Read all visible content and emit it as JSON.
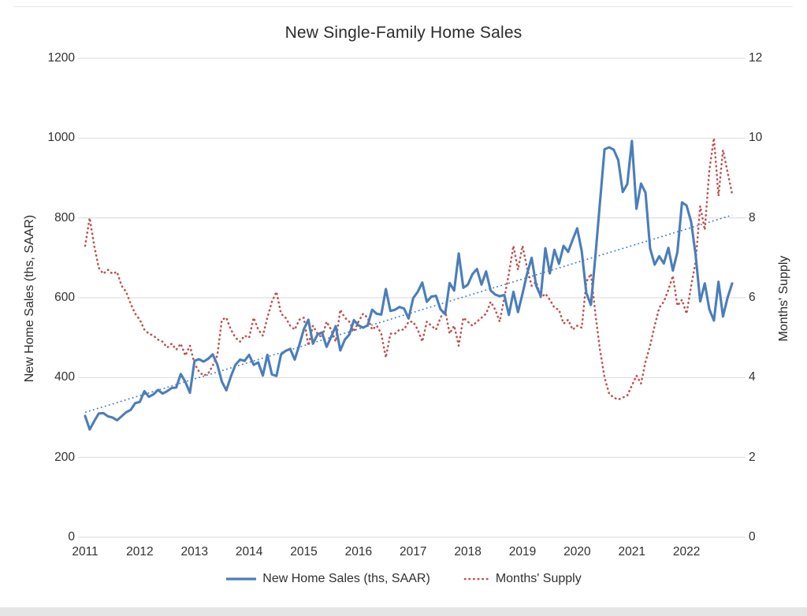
{
  "chart": {
    "title": "New Single-Family Home Sales",
    "left_axis_title": "New Home Sales (ths, SAAR)",
    "right_axis_title": "Months' Supply",
    "legend": {
      "sales_label": "New Home Sales (ths, SAAR)",
      "supply_label": "Months' Supply"
    },
    "colors": {
      "sales_line": "#4a7ebb",
      "supply_line": "#c0504d",
      "trend_line": "#4a7ebb",
      "gridline": "#d9d9d9",
      "text": "#303030"
    }
  },
  "chart_data": {
    "type": "line",
    "title": "New Single-Family Home Sales",
    "frequency": "monthly",
    "x_start": "2011-01",
    "x_end": "2022-11",
    "x_tick_labels": [
      "2011",
      "2012",
      "2013",
      "2014",
      "2015",
      "2016",
      "2017",
      "2018",
      "2019",
      "2020",
      "2021",
      "2022"
    ],
    "left_axis": {
      "label": "New Home Sales (ths, SAAR)",
      "ylim": [
        0,
        1200
      ],
      "tick_step": 200,
      "tick_labels": [
        "0",
        "200",
        "400",
        "600",
        "800",
        "1000",
        "1200"
      ]
    },
    "right_axis": {
      "label": "Months' Supply",
      "ylim": [
        0,
        12
      ],
      "tick_step": 2,
      "tick_labels": [
        "0",
        "2",
        "4",
        "6",
        "8",
        "10",
        "12"
      ]
    },
    "grid": "horizontal",
    "legend_position": "bottom",
    "series": [
      {
        "name": "New Home Sales (ths, SAAR)",
        "axis": "left",
        "style": "solid",
        "color": "#4a7ebb",
        "values": [
          304,
          270,
          291,
          310,
          311,
          303,
          300,
          293,
          303,
          313,
          319,
          336,
          339,
          366,
          352,
          358,
          369,
          360,
          366,
          374,
          375,
          409,
          389,
          362,
          442,
          446,
          440,
          447,
          458,
          433,
          390,
          368,
          403,
          432,
          445,
          442,
          457,
          432,
          438,
          405,
          457,
          408,
          404,
          458,
          467,
          472,
          445,
          481,
          521,
          545,
          485,
          508,
          513,
          477,
          502,
          529,
          468,
          495,
          508,
          544,
          531,
          525,
          531,
          570,
          560,
          558,
          622,
          567,
          570,
          577,
          573,
          548,
          599,
          615,
          638,
          590,
          603,
          605,
          571,
          559,
          637,
          618,
          711,
          625,
          633,
          659,
          672,
          633,
          666,
          618,
          608,
          604,
          607,
          557,
          615,
          564,
          610,
          660,
          700,
          630,
          604,
          724,
          661,
          720,
          685,
          730,
          715,
          745,
          774,
          716,
          612,
          582,
          704,
          839,
          972,
          977,
          971,
          945,
          865,
          885,
          993,
          823,
          886,
          863,
          724,
          683,
          704,
          686,
          725,
          668,
          715,
          839,
          831,
          790,
          707,
          591,
          636,
          571,
          543,
          640,
          553,
          600,
          636
        ]
      },
      {
        "name": "Months' Supply",
        "axis": "right",
        "style": "dotted",
        "color": "#c0504d",
        "values": [
          7.3,
          8.0,
          7.3,
          6.75,
          6.6,
          6.7,
          6.6,
          6.65,
          6.3,
          6.15,
          5.85,
          5.6,
          5.45,
          5.2,
          5.1,
          5.05,
          4.95,
          4.9,
          4.75,
          4.85,
          4.7,
          4.85,
          4.55,
          4.8,
          4.35,
          4.15,
          4.05,
          4.1,
          4.3,
          4.55,
          5.45,
          5.5,
          5.2,
          5.0,
          4.9,
          5.05,
          5.0,
          5.5,
          5.2,
          5.05,
          5.5,
          5.9,
          6.15,
          5.6,
          5.5,
          5.3,
          5.2,
          5.45,
          5.5,
          4.8,
          5.3,
          5.1,
          5.0,
          5.4,
          5.2,
          4.9,
          5.7,
          5.5,
          5.4,
          5.15,
          5.4,
          5.6,
          5.5,
          5.2,
          5.3,
          5.1,
          4.5,
          5.1,
          5.1,
          5.2,
          5.2,
          5.4,
          5.4,
          5.2,
          4.9,
          5.4,
          5.3,
          5.2,
          5.5,
          5.7,
          5.1,
          5.3,
          4.8,
          5.5,
          5.4,
          5.3,
          5.4,
          5.5,
          5.6,
          5.9,
          5.7,
          5.4,
          6.0,
          6.6,
          7.3,
          6.7,
          7.3,
          6.75,
          6.3,
          6.4,
          6.0,
          6.1,
          5.95,
          5.75,
          5.7,
          5.35,
          5.45,
          5.2,
          5.3,
          5.25,
          6.4,
          6.6,
          5.6,
          4.7,
          4.0,
          3.6,
          3.5,
          3.45,
          3.5,
          3.55,
          3.8,
          4.05,
          3.85,
          4.4,
          4.8,
          5.3,
          5.75,
          5.9,
          6.2,
          6.55,
          5.8,
          5.95,
          5.6,
          6.3,
          6.9,
          8.3,
          7.7,
          9.2,
          10.0,
          8.55,
          9.7,
          9.15,
          8.6
        ]
      },
      {
        "name": "Linear trend of New Home Sales",
        "axis": "left",
        "style": "dotted-thin",
        "color": "#4a7ebb",
        "endpoint_values": [
          313,
          807
        ]
      }
    ]
  }
}
